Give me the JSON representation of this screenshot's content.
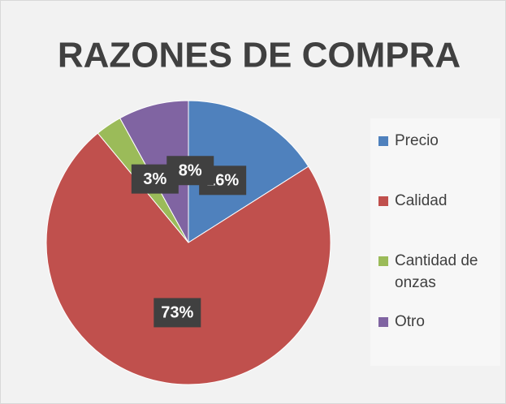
{
  "chart_data": {
    "type": "pie",
    "title": "RAZONES DE COMPRA",
    "categories": [
      "Precio",
      "Calidad",
      "Cantidad de onzas",
      "Otro"
    ],
    "values": [
      16,
      73,
      3,
      8
    ],
    "value_labels": [
      "16%",
      "73%",
      "3%",
      "8%"
    ],
    "colors": [
      "#4f81bd",
      "#c0504d",
      "#9bbb59",
      "#8064a2"
    ],
    "legend": "right"
  }
}
